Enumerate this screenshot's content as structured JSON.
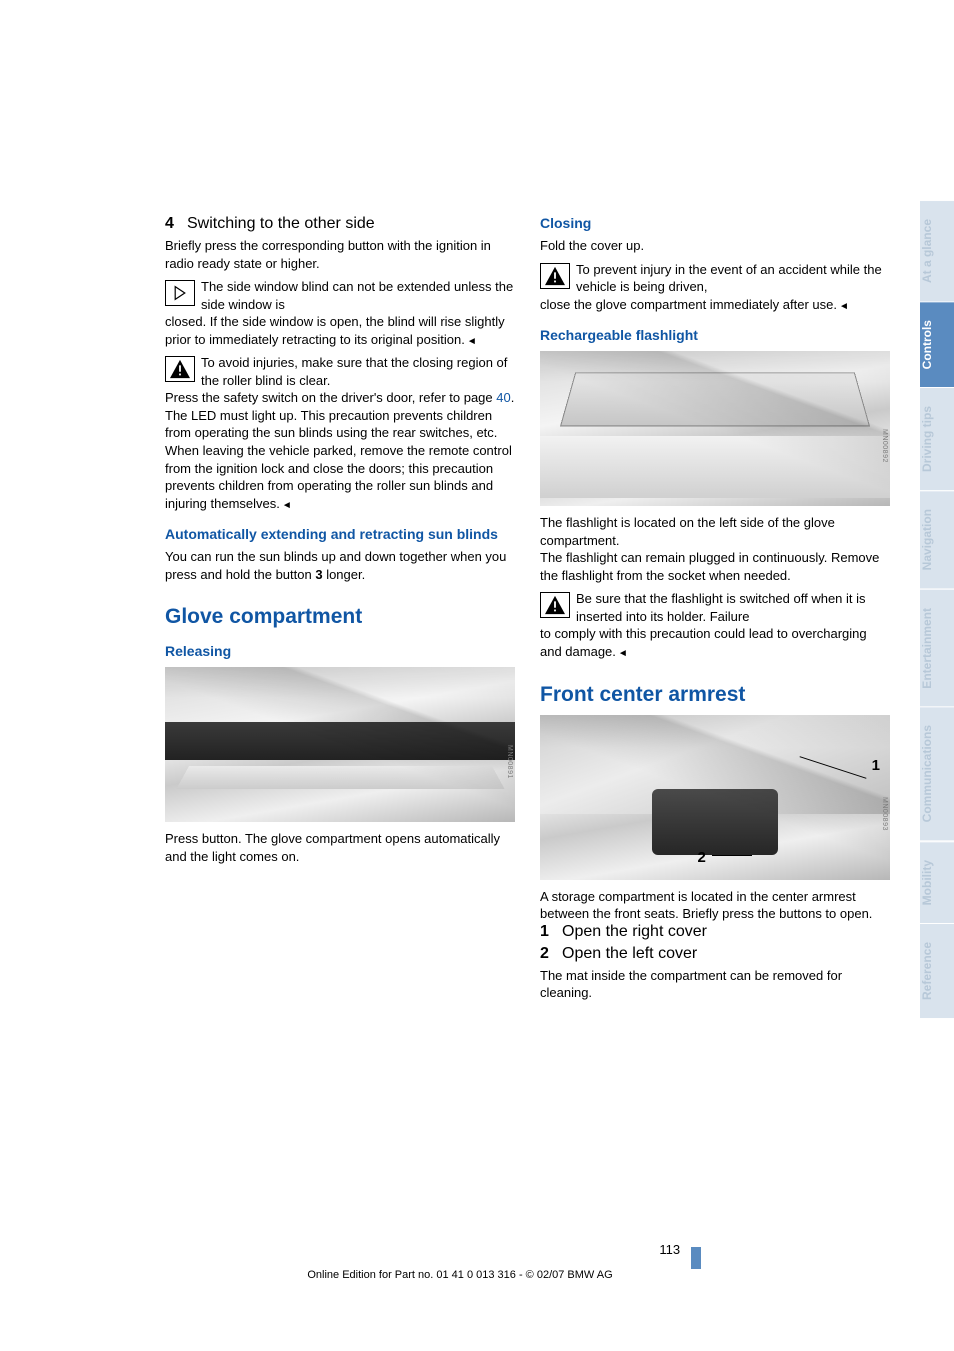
{
  "page_number": "113",
  "copyright": "Online Edition for Part no. 01 41 0 013 316 - © 02/07 BMW AG",
  "sidebar_tabs": [
    {
      "label": "At a glance",
      "cls": "tab-inactive"
    },
    {
      "label": "Controls",
      "cls": "tab-active"
    },
    {
      "label": "Driving tips",
      "cls": "tab-inactive"
    },
    {
      "label": "Navigation",
      "cls": "tab-inactive"
    },
    {
      "label": "Entertainment",
      "cls": "tab-inactive"
    },
    {
      "label": "Communications",
      "cls": "tab-inactive"
    },
    {
      "label": "Mobility",
      "cls": "tab-inactive"
    },
    {
      "label": "Reference",
      "cls": "tab-inactive"
    }
  ],
  "left": {
    "item4_num": "4",
    "item4_label": "Switching to the other side",
    "item4_body": "Briefly press the corresponding button with the ignition in radio ready state or higher.",
    "info1_lead": "The side window blind can not be extended unless the side window is",
    "info1_body": "closed. If the side window is open, the blind will rise slightly prior to immediately retracting to its original position.",
    "warn1_lead": "To avoid injuries, make sure that the closing region of the roller blind is clear.",
    "warn1_body_a": "Press the safety switch on the driver's door, refer to page ",
    "warn1_link": "40",
    "warn1_body_b": ". The LED must light up. This precaution prevents children from operating the sun blinds using the rear switches, etc. When leaving the vehicle parked, remove the remote control from the ignition lock and close the doors; this precaution prevents children from operating the roller sun blinds and injuring themselves.",
    "h2_auto": "Automatically extending and retracting sun blinds",
    "auto_body_a": "You can run the sun blinds up and down together when you press and hold the button ",
    "auto_bold": "3",
    "auto_body_b": " longer.",
    "h1_glove": "Glove compartment",
    "h2_releasing": "Releasing",
    "releasing_body": "Press button. The glove compartment opens automatically and the light comes on."
  },
  "right": {
    "h2_closing": "Closing",
    "closing_body": "Fold the cover up.",
    "warn2_lead": "To prevent injury in the event of an accident while the vehicle is being driven,",
    "warn2_body": "close the glove compartment immediately after use.",
    "h2_flash": "Rechargeable flashlight",
    "flash_body1": "The flashlight is located on the left side of the glove compartment.",
    "flash_body2": "The flashlight can remain plugged in continuously. Remove the flashlight from the socket when needed.",
    "warn3_lead": "Be sure that the flashlight is switched off when it is inserted into its holder. Failure",
    "warn3_body": "to comply with this precaution could lead to overcharging and damage.",
    "h1_armrest": "Front center armrest",
    "armrest_body": "A storage compartment is located in the center armrest between the front seats. Briefly press the buttons to open.",
    "li1_n": "1",
    "li1_t": "Open the right cover",
    "li2_n": "2",
    "li2_t": "Open the left cover",
    "armrest_body2": "The mat inside the compartment can be removed for cleaning.",
    "callout1": "1",
    "callout2": "2"
  }
}
